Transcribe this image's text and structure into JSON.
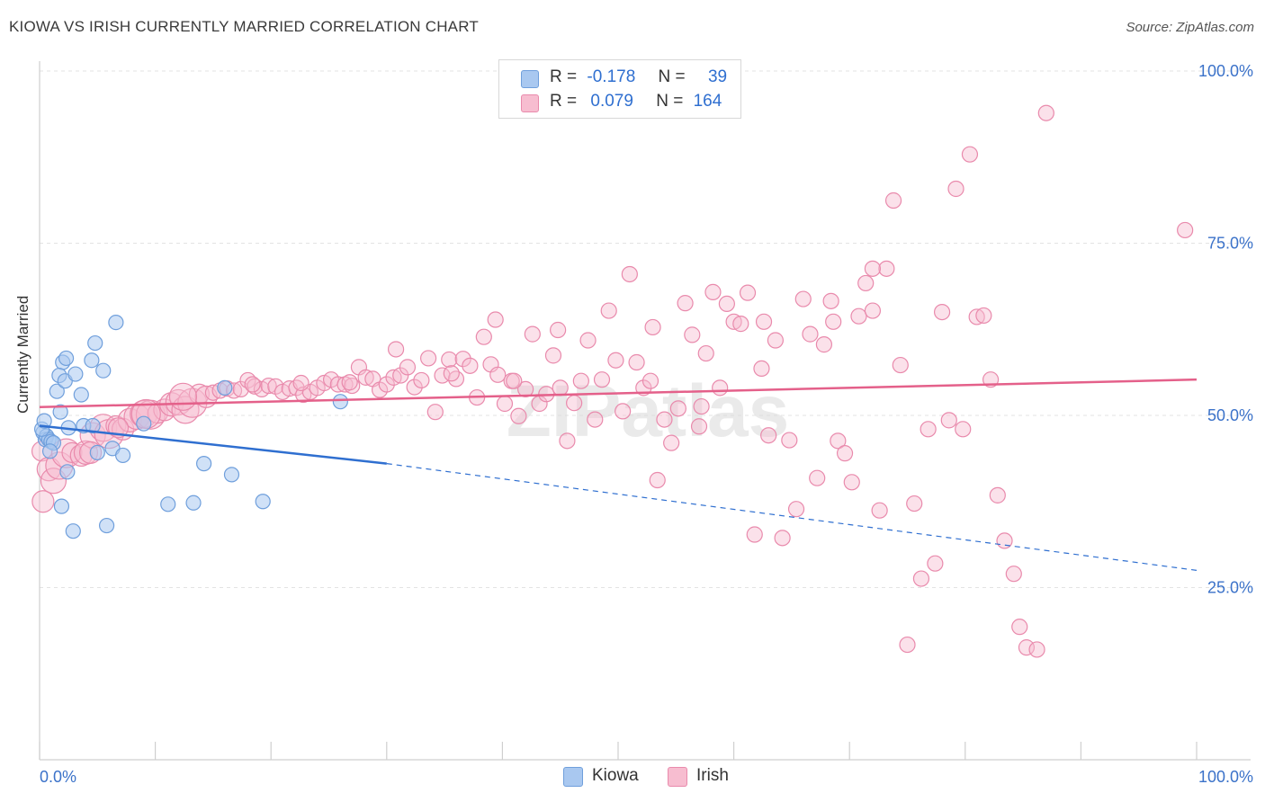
{
  "title": "KIOWA VS IRISH CURRENTLY MARRIED CORRELATION CHART",
  "source": "Source: ZipAtlas.com",
  "watermark": "ZIPatlas",
  "colors": {
    "kiowa_fill": "#a9c8f0",
    "kiowa_stroke": "#6f9fdc",
    "kiowa_line": "#2f6fd0",
    "irish_fill": "#f7bdd0",
    "irish_stroke": "#e98aac",
    "irish_line": "#e4608a",
    "axis_text": "#3b72c9",
    "grid": "#e3e3e3"
  },
  "legend": {
    "kiowa": {
      "r_label": "R =",
      "r_value": "-0.178",
      "n_label": "N =",
      "n_value": "39"
    },
    "irish": {
      "r_label": "R =",
      "r_value": "0.079",
      "n_label": "N =",
      "n_value": "164"
    }
  },
  "chart_data": {
    "type": "scatter",
    "title": "KIOWA VS IRISH CURRENTLY MARRIED CORRELATION CHART",
    "xlabel": "",
    "ylabel": "Currently Married",
    "xlim": [
      0,
      100
    ],
    "ylim": [
      0,
      100
    ],
    "x_tick_labels": [
      "0.0%",
      "100.0%"
    ],
    "y_tick_labels": [
      "100.0%",
      "75.0%",
      "50.0%",
      "25.0%"
    ],
    "y_ticks": [
      100,
      75,
      50,
      25
    ],
    "grid": true,
    "legend_position": "top-center",
    "series": [
      {
        "name": "Kiowa",
        "r": -0.178,
        "n": 39,
        "trend": {
          "x0": 0,
          "y0": 48.5,
          "x1": 30,
          "y1": 43.0,
          "dash_to_x": 100,
          "dash_to_y": 27.5
        },
        "points": [
          [
            0.3,
            47.5
          ],
          [
            0.5,
            46.5
          ],
          [
            0.6,
            47
          ],
          [
            0.8,
            46.5
          ],
          [
            1.0,
            46.2
          ],
          [
            1.2,
            46
          ],
          [
            1.5,
            53.5
          ],
          [
            1.8,
            50.5
          ],
          [
            2.0,
            57.7
          ],
          [
            1.7,
            55.8
          ],
          [
            2.2,
            55
          ],
          [
            2.3,
            58.3
          ],
          [
            1.9,
            36.8
          ],
          [
            2.4,
            41.8
          ],
          [
            2.5,
            48.2
          ],
          [
            3.1,
            56
          ],
          [
            2.9,
            33.2
          ],
          [
            3.6,
            53
          ],
          [
            3.8,
            48.5
          ],
          [
            4.5,
            58
          ],
          [
            4.8,
            60.5
          ],
          [
            5.5,
            56.5
          ],
          [
            5.0,
            44.6
          ],
          [
            4.6,
            48.5
          ],
          [
            5.8,
            34
          ],
          [
            6.3,
            45.2
          ],
          [
            6.6,
            63.5
          ],
          [
            7.2,
            44.2
          ],
          [
            9.0,
            48.8
          ],
          [
            11.1,
            37.1
          ],
          [
            13.3,
            37.3
          ],
          [
            14.2,
            43
          ],
          [
            16.0,
            54
          ],
          [
            16.6,
            41.4
          ],
          [
            19.3,
            37.5
          ],
          [
            26.0,
            52
          ],
          [
            0.2,
            48
          ],
          [
            0.9,
            44.8
          ],
          [
            0.4,
            49.2
          ]
        ]
      },
      {
        "name": "Irish",
        "r": 0.079,
        "n": 164,
        "trend": {
          "x0": 0,
          "y0": 51.2,
          "x1": 100,
          "y1": 55.2
        },
        "points": [
          [
            0.2,
            44.8
          ],
          [
            0.3,
            37.5
          ],
          [
            0.8,
            42.2
          ],
          [
            1.2,
            40.5
          ],
          [
            1.7,
            42.7
          ],
          [
            2.3,
            44.5
          ],
          [
            2.8,
            44.6
          ],
          [
            3.6,
            44.2
          ],
          [
            4.0,
            44.6
          ],
          [
            4.6,
            47.1
          ],
          [
            5.5,
            48.2
          ],
          [
            6.0,
            47.3
          ],
          [
            6.6,
            48.5
          ],
          [
            7.2,
            48
          ],
          [
            7.8,
            49.3
          ],
          [
            8.4,
            49.8
          ],
          [
            9.0,
            50.2
          ],
          [
            9.6,
            50.1
          ],
          [
            10.2,
            50.3
          ],
          [
            10.8,
            50.8
          ],
          [
            11.4,
            51.6
          ],
          [
            12.0,
            51.9
          ],
          [
            12.6,
            50.8
          ],
          [
            13.2,
            51.8
          ],
          [
            13.8,
            53.1
          ],
          [
            14.4,
            52.7
          ],
          [
            15.0,
            53.3
          ],
          [
            15.6,
            53.6
          ],
          [
            16.2,
            53.9
          ],
          [
            16.8,
            53.6
          ],
          [
            17.4,
            53.8
          ],
          [
            18.0,
            55.1
          ],
          [
            18.6,
            54.2
          ],
          [
            19.2,
            53.8
          ],
          [
            19.8,
            54.3
          ],
          [
            20.4,
            54.2
          ],
          [
            21.0,
            53.4
          ],
          [
            21.6,
            53.9
          ],
          [
            22.2,
            54
          ],
          [
            22.8,
            53
          ],
          [
            23.4,
            53.4
          ],
          [
            24.0,
            54
          ],
          [
            24.6,
            54.7
          ],
          [
            25.2,
            55.2
          ],
          [
            25.8,
            54.5
          ],
          [
            26.4,
            54.5
          ],
          [
            27.0,
            54.3
          ],
          [
            27.6,
            57
          ],
          [
            28.2,
            55.5
          ],
          [
            28.8,
            55.3
          ],
          [
            29.4,
            53.7
          ],
          [
            30.0,
            54.5
          ],
          [
            30.6,
            55.5
          ],
          [
            31.2,
            55.8
          ],
          [
            31.8,
            57
          ],
          [
            32.4,
            54.1
          ],
          [
            33.0,
            55.1
          ],
          [
            33.6,
            58.3
          ],
          [
            34.2,
            50.5
          ],
          [
            34.8,
            55.8
          ],
          [
            35.4,
            58.1
          ],
          [
            36.0,
            55.3
          ],
          [
            36.6,
            58.2
          ],
          [
            37.2,
            57.2
          ],
          [
            37.8,
            52.6
          ],
          [
            38.4,
            61.4
          ],
          [
            39.0,
            57.4
          ],
          [
            39.6,
            55.9
          ],
          [
            40.2,
            51.7
          ],
          [
            40.8,
            55
          ],
          [
            41.4,
            49.9
          ],
          [
            42.0,
            53.8
          ],
          [
            42.6,
            61.8
          ],
          [
            43.2,
            51.7
          ],
          [
            43.8,
            53.1
          ],
          [
            44.4,
            58.7
          ],
          [
            45.0,
            54
          ],
          [
            45.6,
            46.3
          ],
          [
            46.2,
            51.8
          ],
          [
            46.8,
            55
          ],
          [
            47.4,
            60.9
          ],
          [
            48.0,
            49.4
          ],
          [
            48.6,
            55.2
          ],
          [
            49.2,
            65.2
          ],
          [
            49.8,
            58
          ],
          [
            50.4,
            50.6
          ],
          [
            51.0,
            70.5
          ],
          [
            51.6,
            57.7
          ],
          [
            52.2,
            54
          ],
          [
            52.8,
            55
          ],
          [
            53.4,
            40.6
          ],
          [
            54.0,
            49.4
          ],
          [
            54.6,
            46
          ],
          [
            55.2,
            51
          ],
          [
            55.8,
            66.3
          ],
          [
            56.4,
            61.7
          ],
          [
            57.0,
            48.4
          ],
          [
            57.6,
            59
          ],
          [
            58.2,
            67.9
          ],
          [
            58.8,
            54
          ],
          [
            59.4,
            66.2
          ],
          [
            60.0,
            63.6
          ],
          [
            60.6,
            63.3
          ],
          [
            61.2,
            67.8
          ],
          [
            61.8,
            32.7
          ],
          [
            62.4,
            56.8
          ],
          [
            63.0,
            47.1
          ],
          [
            63.6,
            60.9
          ],
          [
            64.2,
            32.2
          ],
          [
            64.8,
            46.4
          ],
          [
            65.4,
            36.4
          ],
          [
            66.0,
            66.9
          ],
          [
            66.6,
            61.8
          ],
          [
            67.2,
            40.9
          ],
          [
            67.8,
            60.3
          ],
          [
            68.4,
            66.6
          ],
          [
            69.0,
            46.3
          ],
          [
            69.6,
            44.5
          ],
          [
            70.2,
            40.3
          ],
          [
            70.8,
            64.4
          ],
          [
            71.4,
            69.2
          ],
          [
            72.0,
            65.2
          ],
          [
            72.6,
            36.2
          ],
          [
            73.2,
            71.3
          ],
          [
            73.8,
            81.2
          ],
          [
            74.4,
            57.3
          ],
          [
            75.0,
            16.7
          ],
          [
            75.6,
            37.2
          ],
          [
            76.2,
            26.3
          ],
          [
            76.8,
            48
          ],
          [
            77.4,
            28.5
          ],
          [
            78.0,
            65
          ],
          [
            78.6,
            49.3
          ],
          [
            79.2,
            82.9
          ],
          [
            79.8,
            48
          ],
          [
            80.4,
            87.9
          ],
          [
            81.0,
            64.3
          ],
          [
            81.6,
            64.5
          ],
          [
            82.2,
            55.2
          ],
          [
            82.8,
            38.4
          ],
          [
            83.4,
            31.8
          ],
          [
            84.2,
            27
          ],
          [
            84.7,
            19.3
          ],
          [
            85.3,
            16.3
          ],
          [
            86.2,
            16
          ],
          [
            87.0,
            93.9
          ],
          [
            99.0,
            76.9
          ],
          [
            72.0,
            71.3
          ],
          [
            68.6,
            63.6
          ],
          [
            62.6,
            63.6
          ],
          [
            57.2,
            51.3
          ],
          [
            53.0,
            62.8
          ],
          [
            44.8,
            62.4
          ],
          [
            41.0,
            55
          ],
          [
            39.4,
            63.9
          ],
          [
            35.6,
            56.1
          ],
          [
            30.8,
            59.6
          ],
          [
            26.8,
            54.8
          ],
          [
            22.6,
            54.7
          ],
          [
            18.4,
            54.5
          ],
          [
            12.4,
            52.7
          ],
          [
            9.2,
            50.2
          ],
          [
            6.8,
            48.2
          ],
          [
            4.4,
            44.6
          ]
        ]
      }
    ]
  }
}
